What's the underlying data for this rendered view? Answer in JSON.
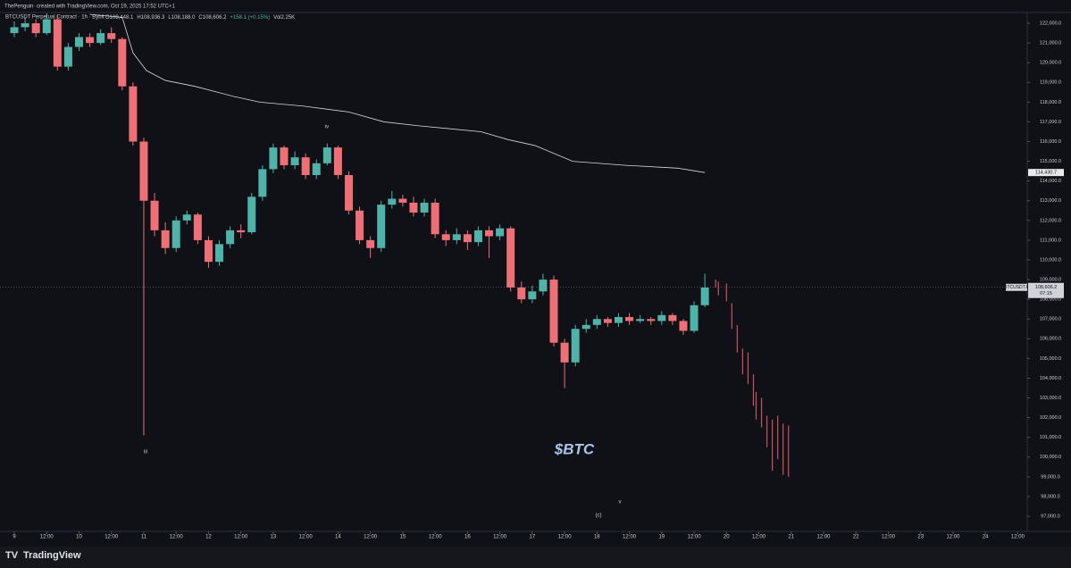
{
  "header": "ThePenguin· created with TradingView.com, Oct 19, 2025 17:52 UTC+1",
  "footer": "TradingView",
  "chart_data": {
    "type": "candlestick",
    "symbol": "BTCUSDT Perpetual Contract · 1h · Bybit",
    "info": [
      "O108,448.1",
      "H108,936.3",
      "L108,188.0",
      "C108,606.2",
      "+158.1 (+0.15%)",
      "Vol2.25K"
    ],
    "up_color": "#4fb3a9",
    "down_color": "#ef6f76",
    "x": [
      0,
      4,
      8,
      12,
      16,
      20,
      24,
      28,
      32,
      36,
      40,
      44,
      48,
      52,
      56,
      60,
      64,
      68,
      72,
      76,
      80,
      84,
      88,
      92,
      96,
      100,
      104,
      108,
      112,
      116,
      120,
      124,
      128,
      132,
      136,
      140,
      144,
      148,
      152,
      156,
      160,
      164,
      168,
      172,
      176,
      180,
      184,
      188,
      192,
      196,
      200,
      204,
      208,
      212,
      216,
      220,
      224,
      228,
      232,
      236,
      240,
      244,
      248,
      252,
      256
    ],
    "ohlc": [
      [
        121500,
        122100,
        121300,
        121800
      ],
      [
        121800,
        122300,
        121600,
        122000
      ],
      [
        122000,
        122200,
        121300,
        121500
      ],
      [
        121500,
        122500,
        121400,
        122200
      ],
      [
        122200,
        122400,
        119600,
        119800
      ],
      [
        119800,
        121000,
        119600,
        120800
      ],
      [
        120800,
        121500,
        120600,
        121300
      ],
      [
        121300,
        121500,
        120800,
        121000
      ],
      [
        121000,
        121700,
        120900,
        121500
      ],
      [
        121500,
        121800,
        121000,
        121200
      ],
      [
        121200,
        121300,
        118600,
        118800
      ],
      [
        118800,
        119000,
        115800,
        116000
      ],
      [
        116000,
        116200,
        101100,
        113000
      ],
      [
        113000,
        113400,
        111200,
        111500
      ],
      [
        111500,
        111900,
        110300,
        110600
      ],
      [
        110600,
        112200,
        110400,
        112000
      ],
      [
        112000,
        112500,
        111800,
        112300
      ],
      [
        112300,
        112400,
        110800,
        111000
      ],
      [
        111000,
        111200,
        109600,
        109900
      ],
      [
        109900,
        111000,
        109700,
        110800
      ],
      [
        110800,
        111700,
        110600,
        111500
      ],
      [
        111500,
        111800,
        111100,
        111400
      ],
      [
        111400,
        113400,
        111300,
        113200
      ],
      [
        113200,
        114800,
        113000,
        114600
      ],
      [
        114600,
        115900,
        114400,
        115700
      ],
      [
        115700,
        115800,
        114600,
        114800
      ],
      [
        114800,
        115500,
        114600,
        115200
      ],
      [
        115200,
        115400,
        114100,
        114300
      ],
      [
        114300,
        115100,
        114100,
        114900
      ],
      [
        114900,
        115900,
        114800,
        115700
      ],
      [
        115700,
        115800,
        114100,
        114300
      ],
      [
        114300,
        114500,
        112300,
        112500
      ],
      [
        112500,
        112700,
        110800,
        111000
      ],
      [
        111000,
        111200,
        110100,
        110600
      ],
      [
        110600,
        113000,
        110400,
        112800
      ],
      [
        112800,
        113500,
        112600,
        113100
      ],
      [
        113100,
        113300,
        112700,
        112900
      ],
      [
        112900,
        113200,
        112200,
        112400
      ],
      [
        112400,
        113100,
        112200,
        112900
      ],
      [
        112900,
        113100,
        111100,
        111300
      ],
      [
        111300,
        111500,
        110700,
        111000
      ],
      [
        111000,
        111600,
        110800,
        111300
      ],
      [
        111300,
        111500,
        110500,
        110900
      ],
      [
        110900,
        111700,
        110700,
        111500
      ],
      [
        111500,
        111700,
        110100,
        111200
      ],
      [
        111200,
        111800,
        111000,
        111600
      ],
      [
        111600,
        111700,
        108400,
        108600
      ],
      [
        108600,
        108900,
        107800,
        108000
      ],
      [
        108000,
        108700,
        107800,
        108400
      ],
      [
        108400,
        109300,
        108200,
        109000
      ],
      [
        109000,
        109200,
        105600,
        105800
      ],
      [
        105800,
        106000,
        103500,
        104800
      ],
      [
        104800,
        106700,
        104600,
        106500
      ],
      [
        106500,
        107000,
        106300,
        106700
      ],
      [
        106700,
        107200,
        106500,
        107000
      ],
      [
        107000,
        107100,
        106600,
        106800
      ],
      [
        106800,
        107300,
        106600,
        107100
      ],
      [
        107100,
        107300,
        106700,
        106900
      ],
      [
        106900,
        107200,
        106800,
        107000
      ],
      [
        107000,
        107100,
        106700,
        106900
      ],
      [
        106900,
        107400,
        106700,
        107200
      ],
      [
        107200,
        107300,
        106700,
        106900
      ],
      [
        106900,
        107000,
        106200,
        106400
      ],
      [
        106400,
        107900,
        106300,
        107700
      ],
      [
        107700,
        109300,
        107600,
        108600
      ]
    ],
    "ma": {
      "color": "#d8d8d8",
      "x": [
        28,
        40,
        44,
        49,
        56,
        67,
        81,
        91,
        107,
        124,
        137,
        150,
        173,
        183,
        193,
        207,
        226,
        246,
        256
      ],
      "values": [
        122450,
        122300,
        120500,
        119600,
        119100,
        118800,
        118300,
        118000,
        117800,
        117500,
        117000,
        116800,
        116500,
        116100,
        115800,
        115000,
        114800,
        114650,
        114430
      ]
    },
    "projection": {
      "color": "#c9545c",
      "x": [
        260,
        261,
        264,
        266,
        268,
        270,
        272,
        274,
        275,
        277,
        279,
        281,
        283,
        285,
        287
      ],
      "high": [
        109000,
        108900,
        108800,
        107800,
        106700,
        105500,
        105300,
        104200,
        103300,
        103000,
        102100,
        101900,
        102100,
        101700,
        101600
      ],
      "low": [
        108600,
        108200,
        107900,
        106500,
        105300,
        104200,
        103700,
        102600,
        101900,
        101500,
        100500,
        99300,
        99900,
        99100,
        99000
      ]
    },
    "ma_label": {
      "value": 114430.7,
      "label": "114,430.7"
    },
    "last_price": {
      "value": 108606.2,
      "label": "108,606.2"
    },
    "last_symbol": "BTCUSDT.P",
    "countdown": "07:15",
    "annotations": [
      "iii",
      "iv",
      "v",
      "(c)",
      "$BTC"
    ],
    "xlim": [
      -5.3,
      375.5
    ],
    "ylim": [
      96230,
      122500
    ],
    "xticks": [
      {
        "value": 0,
        "label": "9"
      },
      {
        "value": 12,
        "label": "12:00"
      },
      {
        "value": 24,
        "label": "10"
      },
      {
        "value": 36,
        "label": "12:00"
      },
      {
        "value": 48,
        "label": "11"
      },
      {
        "value": 60,
        "label": "12:00"
      },
      {
        "value": 72,
        "label": "12"
      },
      {
        "value": 84,
        "label": "12:00"
      },
      {
        "value": 96,
        "label": "13"
      },
      {
        "value": 108,
        "label": "12:00"
      },
      {
        "value": 120,
        "label": "14"
      },
      {
        "value": 132,
        "label": "12:00"
      },
      {
        "value": 144,
        "label": "15"
      },
      {
        "value": 156,
        "label": "12:00"
      },
      {
        "value": 168,
        "label": "16"
      },
      {
        "value": 180,
        "label": "12:00"
      },
      {
        "value": 192,
        "label": "17"
      },
      {
        "value": 204,
        "label": "12:00"
      },
      {
        "value": 216,
        "label": "18"
      },
      {
        "value": 228,
        "label": "12:00"
      },
      {
        "value": 240,
        "label": "19"
      },
      {
        "value": 252,
        "label": "12:00"
      },
      {
        "value": 264,
        "label": "20"
      },
      {
        "value": 276,
        "label": "12:00"
      },
      {
        "value": 288,
        "label": "21"
      },
      {
        "value": 300,
        "label": "12:00"
      },
      {
        "value": 312,
        "label": "22"
      },
      {
        "value": 324,
        "label": "12:00"
      },
      {
        "value": 336,
        "label": "23"
      },
      {
        "value": 348,
        "label": "12:00"
      },
      {
        "value": 360,
        "label": "24"
      },
      {
        "value": 372,
        "label": "12:00"
      }
    ],
    "yticks": [
      {
        "value": 97000,
        "label": "97,000.0"
      },
      {
        "value": 98000,
        "label": "98,000.0"
      },
      {
        "value": 99000,
        "label": "99,000.0"
      },
      {
        "value": 100000,
        "label": "100,000.0"
      },
      {
        "value": 101000,
        "label": "101,000.0"
      },
      {
        "value": 102000,
        "label": "102,000.0"
      },
      {
        "value": 103000,
        "label": "103,000.0"
      },
      {
        "value": 104000,
        "label": "104,000.0"
      },
      {
        "value": 105000,
        "label": "105,000.0"
      },
      {
        "value": 106000,
        "label": "106,000.0"
      },
      {
        "value": 107000,
        "label": "107,000.0"
      },
      {
        "value": 108000,
        "label": "108,000.0"
      },
      {
        "value": 109000,
        "label": "109,000.0"
      },
      {
        "value": 110000,
        "label": "110,000.0"
      },
      {
        "value": 111000,
        "label": "111,000.0"
      },
      {
        "value": 112000,
        "label": "112,000.0"
      },
      {
        "value": 113000,
        "label": "113,000.0"
      },
      {
        "value": 114000,
        "label": "114,000.0"
      },
      {
        "value": 115000,
        "label": "115,000.0"
      },
      {
        "value": 116000,
        "label": "116,000.0"
      },
      {
        "value": 117000,
        "label": "117,000.0"
      },
      {
        "value": 118000,
        "label": "118,000.0"
      },
      {
        "value": 119000,
        "label": "119,000.0"
      },
      {
        "value": 120000,
        "label": "120,000.0"
      },
      {
        "value": 121000,
        "label": "121,000.0"
      },
      {
        "value": 122000,
        "label": "122,000.0"
      }
    ]
  }
}
